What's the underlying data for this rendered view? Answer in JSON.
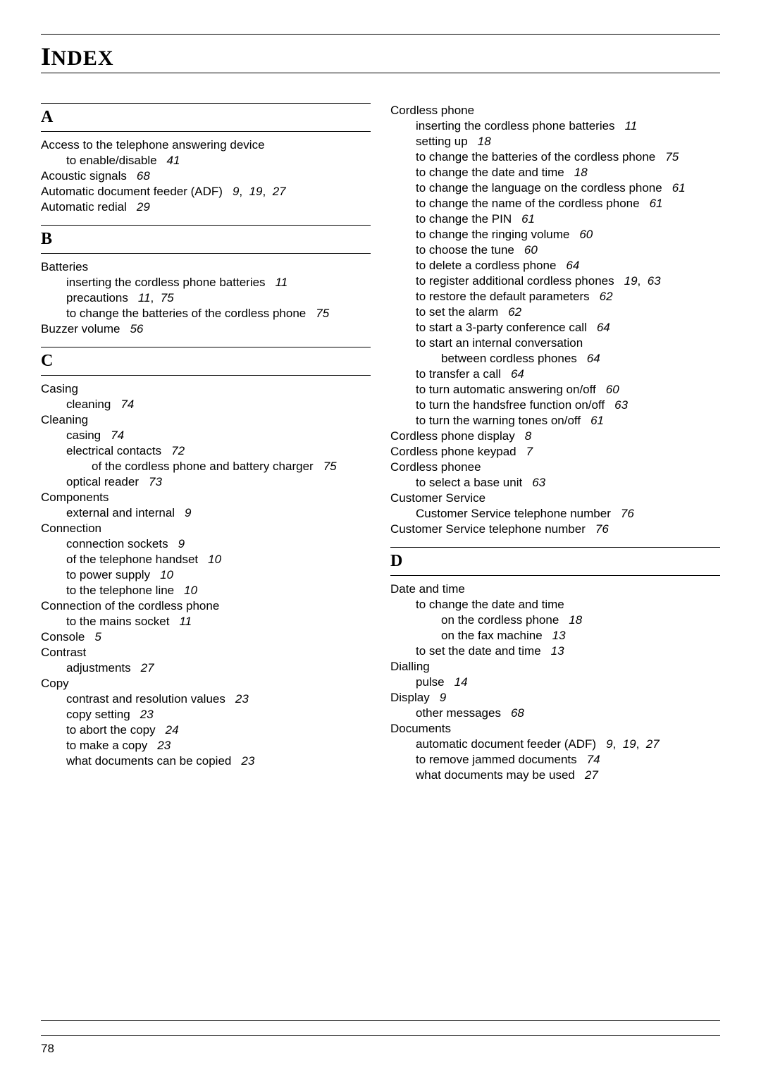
{
  "title_html": "I<span class='rest'>NDEX</span>",
  "page_number": "78",
  "columns": [
    {
      "blocks": [
        {
          "letter": "A",
          "entries": [
            {
              "lvl": 0,
              "text": "Access to the telephone answering device",
              "pages": []
            },
            {
              "lvl": 1,
              "text": "to enable/disable",
              "pages": [
                "41"
              ]
            },
            {
              "lvl": 0,
              "text": "Acoustic signals",
              "pages": [
                "68"
              ]
            },
            {
              "lvl": 0,
              "text": "Automatic document feeder (ADF)",
              "pages": [
                "9",
                "19",
                "27"
              ]
            },
            {
              "lvl": 0,
              "text": "Automatic redial",
              "pages": [
                "29"
              ]
            }
          ]
        },
        {
          "letter": "B",
          "entries": [
            {
              "lvl": 0,
              "text": "Batteries",
              "pages": []
            },
            {
              "lvl": 1,
              "text": "inserting the cordless phone batteries",
              "pages": [
                "11"
              ]
            },
            {
              "lvl": 1,
              "text": "precautions",
              "pages": [
                "11",
                "75"
              ]
            },
            {
              "lvl": 1,
              "text": "to change the batteries of the cordless phone",
              "pages": [
                "75"
              ]
            },
            {
              "lvl": 0,
              "text": "Buzzer volume",
              "pages": [
                "56"
              ]
            }
          ]
        },
        {
          "letter": "C",
          "entries": [
            {
              "lvl": 0,
              "text": "Casing",
              "pages": []
            },
            {
              "lvl": 1,
              "text": "cleaning",
              "pages": [
                "74"
              ]
            },
            {
              "lvl": 0,
              "text": "Cleaning",
              "pages": []
            },
            {
              "lvl": 1,
              "text": "casing",
              "pages": [
                "74"
              ]
            },
            {
              "lvl": 1,
              "text": "electrical contacts",
              "pages": [
                "72"
              ]
            },
            {
              "lvl": 2,
              "text": "of the cordless phone and battery charger",
              "pages": [
                "75"
              ]
            },
            {
              "lvl": 1,
              "text": "optical reader",
              "pages": [
                "73"
              ]
            },
            {
              "lvl": 0,
              "text": "Components",
              "pages": []
            },
            {
              "lvl": 1,
              "text": "external and internal",
              "pages": [
                "9"
              ]
            },
            {
              "lvl": 0,
              "text": "Connection",
              "pages": []
            },
            {
              "lvl": 1,
              "text": "connection sockets",
              "pages": [
                "9"
              ]
            },
            {
              "lvl": 1,
              "text": "of the telephone handset",
              "pages": [
                "10"
              ]
            },
            {
              "lvl": 1,
              "text": "to power supply",
              "pages": [
                "10"
              ]
            },
            {
              "lvl": 1,
              "text": "to the telephone line",
              "pages": [
                "10"
              ]
            },
            {
              "lvl": 0,
              "text": "Connection of the cordless phone",
              "pages": []
            },
            {
              "lvl": 1,
              "text": "to the mains socket",
              "pages": [
                "11"
              ]
            },
            {
              "lvl": 0,
              "text": "Console",
              "pages": [
                "5"
              ]
            },
            {
              "lvl": 0,
              "text": "Contrast",
              "pages": []
            },
            {
              "lvl": 1,
              "text": "adjustments",
              "pages": [
                "27"
              ]
            },
            {
              "lvl": 0,
              "text": "Copy",
              "pages": []
            },
            {
              "lvl": 1,
              "text": "contrast and resolution values",
              "pages": [
                "23"
              ]
            },
            {
              "lvl": 1,
              "text": "copy setting",
              "pages": [
                "23"
              ]
            },
            {
              "lvl": 1,
              "text": "to abort the copy",
              "pages": [
                "24"
              ]
            },
            {
              "lvl": 1,
              "text": "to make a copy",
              "pages": [
                "23"
              ]
            },
            {
              "lvl": 1,
              "text": "what documents can be copied",
              "pages": [
                "23"
              ]
            }
          ]
        }
      ]
    },
    {
      "blocks": [
        {
          "letter": null,
          "entries": [
            {
              "lvl": 0,
              "text": "Cordless phone",
              "pages": []
            },
            {
              "lvl": 1,
              "text": "inserting the cordless phone batteries",
              "pages": [
                "11"
              ]
            },
            {
              "lvl": 1,
              "text": "setting up",
              "pages": [
                "18"
              ]
            },
            {
              "lvl": 1,
              "text": "to change the batteries of the cordless phone",
              "pages": [
                "75"
              ]
            },
            {
              "lvl": 1,
              "text": "to change the date and time",
              "pages": [
                "18"
              ]
            },
            {
              "lvl": 1,
              "text": "to change the language on the cordless phone",
              "pages": [
                "61"
              ]
            },
            {
              "lvl": 1,
              "text": "to change the name of the cordless phone",
              "pages": [
                "61"
              ]
            },
            {
              "lvl": 1,
              "text": "to change the PIN",
              "pages": [
                "61"
              ]
            },
            {
              "lvl": 1,
              "text": "to change the ringing volume",
              "pages": [
                "60"
              ]
            },
            {
              "lvl": 1,
              "text": "to choose the tune",
              "pages": [
                "60"
              ]
            },
            {
              "lvl": 1,
              "text": "to delete a cordless phone",
              "pages": [
                "64"
              ]
            },
            {
              "lvl": 1,
              "text": "to register additional cordless phones",
              "pages": [
                "19",
                "63"
              ]
            },
            {
              "lvl": 1,
              "text": "to restore the default parameters",
              "pages": [
                "62"
              ]
            },
            {
              "lvl": 1,
              "text": "to set the alarm",
              "pages": [
                "62"
              ]
            },
            {
              "lvl": 1,
              "text": "to start a 3-party conference call",
              "pages": [
                "64"
              ]
            },
            {
              "lvl": 1,
              "text": "to start an internal conversation",
              "pages": []
            },
            {
              "lvl": 2,
              "text": "between cordless phones",
              "pages": [
                "64"
              ]
            },
            {
              "lvl": 1,
              "text": "to transfer a call",
              "pages": [
                "64"
              ]
            },
            {
              "lvl": 1,
              "text": "to turn automatic answering on/off",
              "pages": [
                "60"
              ]
            },
            {
              "lvl": 1,
              "text": "to turn the handsfree function on/off",
              "pages": [
                "63"
              ]
            },
            {
              "lvl": 1,
              "text": "to turn the warning tones on/off",
              "pages": [
                "61"
              ]
            },
            {
              "lvl": 0,
              "text": "Cordless phone display",
              "pages": [
                "8"
              ]
            },
            {
              "lvl": 0,
              "text": "Cordless phone keypad",
              "pages": [
                "7"
              ]
            },
            {
              "lvl": 0,
              "text": "Cordless phonee",
              "pages": []
            },
            {
              "lvl": 1,
              "text": "to select a base unit",
              "pages": [
                "63"
              ]
            },
            {
              "lvl": 0,
              "text": "Customer Service",
              "pages": []
            },
            {
              "lvl": 1,
              "text": "Customer Service telephone number",
              "pages": [
                "76"
              ]
            },
            {
              "lvl": 0,
              "text": "Customer Service telephone number",
              "pages": [
                "76"
              ]
            }
          ]
        },
        {
          "letter": "D",
          "entries": [
            {
              "lvl": 0,
              "text": "Date and time",
              "pages": []
            },
            {
              "lvl": 1,
              "text": "to change the date and time",
              "pages": []
            },
            {
              "lvl": 2,
              "text": "on the cordless phone",
              "pages": [
                "18"
              ]
            },
            {
              "lvl": 2,
              "text": "on the fax machine",
              "pages": [
                "13"
              ]
            },
            {
              "lvl": 1,
              "text": "to set the date and time",
              "pages": [
                "13"
              ]
            },
            {
              "lvl": 0,
              "text": "Dialling",
              "pages": []
            },
            {
              "lvl": 1,
              "text": "pulse",
              "pages": [
                "14"
              ]
            },
            {
              "lvl": 0,
              "text": "Display",
              "pages": [
                "9"
              ]
            },
            {
              "lvl": 1,
              "text": "other messages",
              "pages": [
                "68"
              ]
            },
            {
              "lvl": 0,
              "text": "Documents",
              "pages": []
            },
            {
              "lvl": 1,
              "text": "automatic document feeder (ADF)",
              "pages": [
                "9",
                "19",
                "27"
              ]
            },
            {
              "lvl": 1,
              "text": "to remove jammed documents",
              "pages": [
                "74"
              ]
            },
            {
              "lvl": 1,
              "text": "what documents may be used",
              "pages": [
                "27"
              ]
            }
          ]
        }
      ]
    }
  ]
}
